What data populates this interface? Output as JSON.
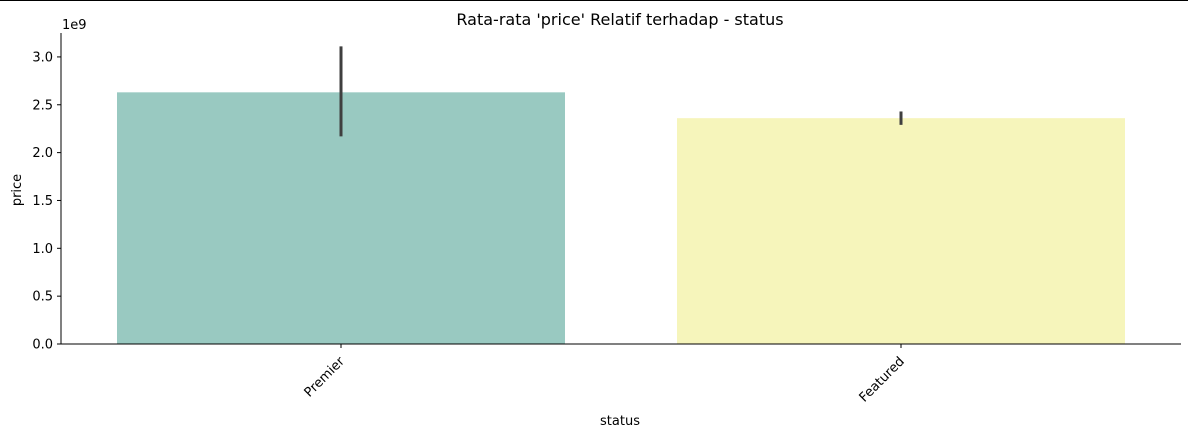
{
  "chart_data": {
    "type": "bar",
    "title": "Rata-rata 'price' Relatif terhadap - status",
    "xlabel": "status",
    "ylabel": "price",
    "y_scale_label": "1e9",
    "categories": [
      "Premier",
      "Featured"
    ],
    "values": [
      2.63,
      2.36
    ],
    "error_bars": [
      {
        "low": 2.17,
        "high": 3.11
      },
      {
        "low": 2.29,
        "high": 2.43
      }
    ],
    "colors": [
      "#99c9c1",
      "#f6f5bb"
    ],
    "error_bar_color": "#3f3f3f",
    "ylim": [
      0,
      3.25
    ],
    "yticks": [
      0.0,
      0.5,
      1.0,
      1.5,
      2.0,
      2.5,
      3.0
    ],
    "ytick_labels": [
      "0.0",
      "0.5",
      "1.0",
      "1.5",
      "2.0",
      "2.5",
      "3.0"
    ],
    "grid": false,
    "legend": "none"
  }
}
